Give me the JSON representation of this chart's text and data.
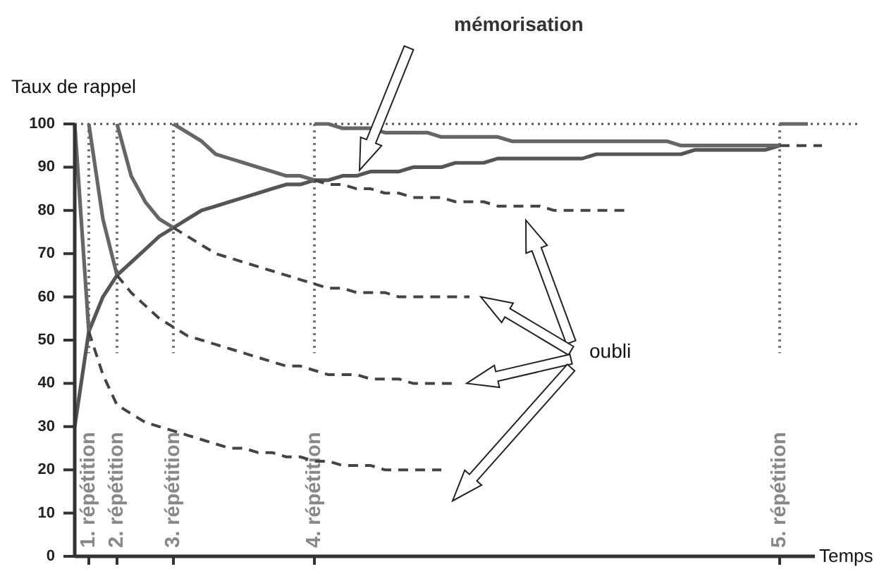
{
  "chart_data": {
    "type": "line",
    "xlabel": "Temps",
    "ylabel": "Taux de rappel",
    "categories": [
      null,
      null,
      null,
      null,
      null,
      null,
      null,
      null,
      null,
      null,
      null,
      null,
      null,
      null,
      null,
      null,
      null,
      null,
      null,
      null,
      null,
      null,
      null,
      null,
      null,
      null,
      null,
      null,
      null,
      null,
      null,
      null,
      null,
      null,
      null,
      null,
      null,
      null,
      null,
      null,
      null,
      null,
      null,
      null,
      null,
      null,
      null,
      null,
      null,
      null,
      null,
      null,
      null,
      null
    ],
    "ylim": [
      0,
      100
    ],
    "yticks": [
      0,
      10,
      20,
      30,
      40,
      50,
      60,
      70,
      80,
      90,
      100
    ],
    "tick_labels": "y",
    "grid": false,
    "marker": "none",
    "series": [
      {
        "color": "#555555",
        "line_style": "solid",
        "values": [
          30,
          52,
          60,
          65,
          68,
          71,
          74,
          76,
          78,
          80,
          81,
          82,
          83,
          84,
          85,
          86,
          86,
          87,
          87,
          88,
          88,
          89,
          89,
          89,
          90,
          90,
          90,
          91,
          91,
          91,
          92,
          92,
          92,
          92,
          92,
          92,
          92,
          93,
          93,
          93,
          93,
          93,
          93,
          93,
          94,
          94,
          94,
          94,
          94,
          94,
          95,
          null,
          null,
          null
        ]
      },
      {
        "color": "#666666",
        "line_style": "solid",
        "values": [
          100,
          52,
          null,
          null,
          null,
          null,
          null,
          null,
          null,
          null,
          null,
          null,
          null,
          null,
          null,
          null,
          null,
          null,
          null,
          null,
          null,
          null,
          null,
          null,
          null,
          null,
          null,
          null,
          null,
          null,
          null,
          null,
          null,
          null,
          null,
          null,
          null,
          null,
          null,
          null,
          null,
          null,
          null,
          null,
          null,
          null,
          null,
          null,
          null,
          null,
          null,
          null,
          null,
          null
        ]
      },
      {
        "color": "#666666",
        "line_style": "solid",
        "values": [
          null,
          100,
          78,
          65,
          null,
          null,
          null,
          null,
          null,
          null,
          null,
          null,
          null,
          null,
          null,
          null,
          null,
          null,
          null,
          null,
          null,
          null,
          null,
          null,
          null,
          null,
          null,
          null,
          null,
          null,
          null,
          null,
          null,
          null,
          null,
          null,
          null,
          null,
          null,
          null,
          null,
          null,
          null,
          null,
          null,
          null,
          null,
          null,
          null,
          null,
          null,
          null,
          null,
          null
        ]
      },
      {
        "color": "#666666",
        "line_style": "solid",
        "values": [
          null,
          null,
          null,
          100,
          88,
          82,
          78,
          76,
          null,
          null,
          null,
          null,
          null,
          null,
          null,
          null,
          null,
          null,
          null,
          null,
          null,
          null,
          null,
          null,
          null,
          null,
          null,
          null,
          null,
          null,
          null,
          null,
          null,
          null,
          null,
          null,
          null,
          null,
          null,
          null,
          null,
          null,
          null,
          null,
          null,
          null,
          null,
          null,
          null,
          null,
          null,
          null,
          null,
          null
        ]
      },
      {
        "color": "#666666",
        "line_style": "solid",
        "values": [
          null,
          null,
          null,
          null,
          null,
          null,
          null,
          100,
          98,
          96,
          93,
          92,
          91,
          90,
          89,
          88,
          88,
          87,
          null,
          null,
          null,
          null,
          null,
          null,
          null,
          null,
          null,
          null,
          null,
          null,
          null,
          null,
          null,
          null,
          null,
          null,
          null,
          null,
          null,
          null,
          null,
          null,
          null,
          null,
          null,
          null,
          null,
          null,
          null,
          null,
          null,
          null,
          null,
          null
        ]
      },
      {
        "color": "#666666",
        "line_style": "solid",
        "values": [
          null,
          null,
          null,
          null,
          null,
          null,
          null,
          null,
          null,
          null,
          null,
          null,
          null,
          null,
          null,
          null,
          null,
          100,
          100,
          99,
          99,
          99,
          98,
          98,
          98,
          98,
          97,
          97,
          97,
          97,
          97,
          96,
          96,
          96,
          96,
          96,
          96,
          96,
          96,
          96,
          96,
          96,
          96,
          95,
          95,
          95,
          95,
          95,
          95,
          95,
          95,
          null,
          null,
          null
        ]
      },
      {
        "color": "#666666",
        "line_style": "solid",
        "values": [
          null,
          null,
          null,
          null,
          null,
          null,
          null,
          null,
          null,
          null,
          null,
          null,
          null,
          null,
          null,
          null,
          null,
          null,
          null,
          null,
          null,
          null,
          null,
          null,
          null,
          null,
          null,
          null,
          null,
          null,
          null,
          null,
          null,
          null,
          null,
          null,
          null,
          null,
          null,
          null,
          null,
          null,
          null,
          null,
          null,
          null,
          null,
          null,
          null,
          null,
          100,
          100,
          100,
          null
        ]
      },
      {
        "color": "#444444",
        "line_style": "dashed",
        "values": [
          null,
          52,
          42,
          35,
          33,
          31,
          30,
          29,
          28,
          27,
          26,
          25,
          25,
          24,
          24,
          23,
          23,
          22,
          22,
          21,
          21,
          21,
          20,
          20,
          20,
          20,
          20,
          null,
          null,
          null,
          null,
          null,
          null,
          null,
          null,
          null,
          null,
          null,
          null,
          null,
          null,
          null,
          null,
          null,
          null,
          null,
          null,
          null,
          null,
          null,
          null,
          null,
          null,
          null
        ]
      },
      {
        "color": "#444444",
        "line_style": "dashed",
        "values": [
          null,
          null,
          null,
          65,
          61,
          58,
          55,
          53,
          51,
          50,
          49,
          48,
          47,
          46,
          45,
          44,
          44,
          43,
          42,
          42,
          42,
          41,
          41,
          41,
          40,
          40,
          40,
          40,
          null,
          null,
          null,
          null,
          null,
          null,
          null,
          null,
          null,
          null,
          null,
          null,
          null,
          null,
          null,
          null,
          null,
          null,
          null,
          null,
          null,
          null,
          null,
          null,
          null,
          null
        ]
      },
      {
        "color": "#444444",
        "line_style": "dashed",
        "values": [
          null,
          null,
          null,
          null,
          null,
          null,
          null,
          76,
          74,
          72,
          70,
          69,
          68,
          67,
          66,
          65,
          64,
          63,
          62,
          62,
          61,
          61,
          61,
          60,
          60,
          60,
          60,
          60,
          60,
          null,
          null,
          null,
          null,
          null,
          null,
          null,
          null,
          null,
          null,
          null,
          null,
          null,
          null,
          null,
          null,
          null,
          null,
          null,
          null,
          null,
          null,
          null,
          null,
          null
        ]
      },
      {
        "color": "#444444",
        "line_style": "dashed",
        "values": [
          null,
          null,
          null,
          null,
          null,
          null,
          null,
          null,
          null,
          null,
          null,
          null,
          null,
          null,
          null,
          null,
          null,
          87,
          86,
          86,
          85,
          85,
          84,
          84,
          83,
          83,
          83,
          82,
          82,
          82,
          81,
          81,
          81,
          81,
          80,
          80,
          80,
          80,
          80,
          80,
          null,
          null,
          null,
          null,
          null,
          null,
          null,
          null,
          null,
          null,
          null,
          null,
          null,
          null
        ]
      },
      {
        "color": "#444444",
        "line_style": "dashed",
        "values": [
          null,
          null,
          null,
          null,
          null,
          null,
          null,
          null,
          null,
          null,
          null,
          null,
          null,
          null,
          null,
          null,
          null,
          null,
          null,
          null,
          null,
          null,
          null,
          null,
          null,
          null,
          null,
          null,
          null,
          null,
          null,
          null,
          null,
          null,
          null,
          null,
          null,
          null,
          null,
          null,
          null,
          null,
          null,
          null,
          null,
          null,
          null,
          null,
          null,
          null,
          95,
          95,
          95,
          95
        ]
      }
    ],
    "ref_lines": [
      {
        "axis": "y",
        "value": 100,
        "line_style": "dotted",
        "color": "#555555"
      }
    ],
    "annotations": [
      "mémorisation",
      "oubli",
      "1. répétition",
      "2. répétition",
      "3. répétition",
      "4. répétition",
      "5. répétition"
    ]
  }
}
